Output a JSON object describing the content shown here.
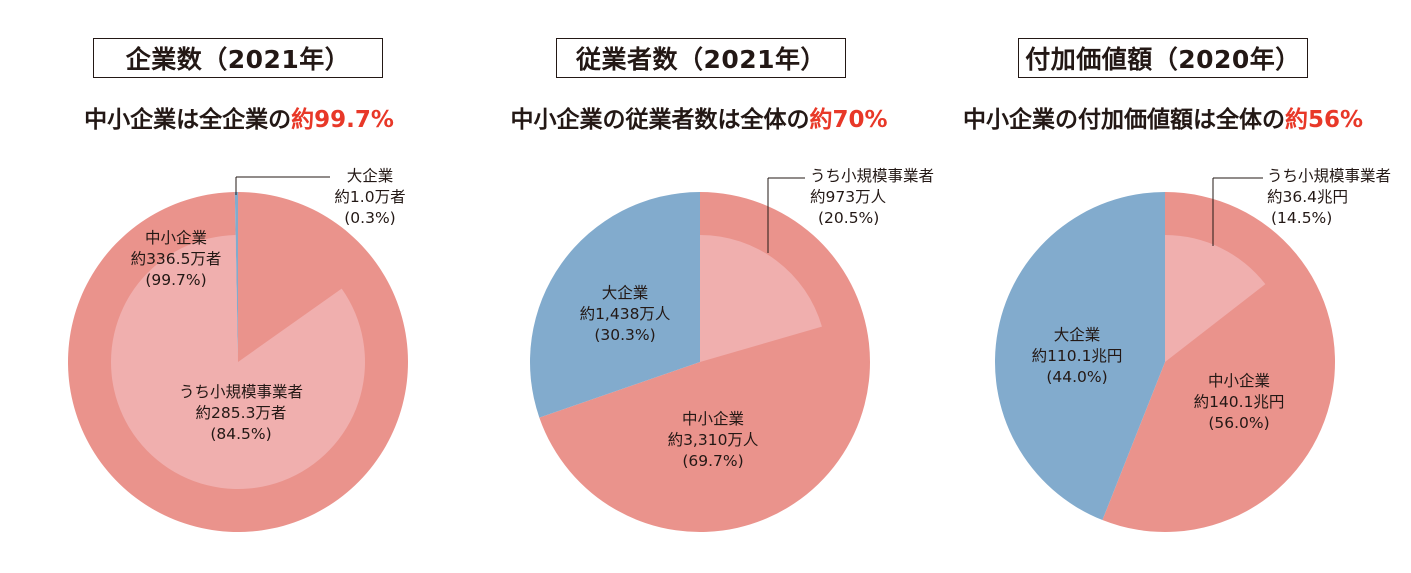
{
  "colors": {
    "small": "#ea938c",
    "micro": "#f0afae",
    "large": "#82abcd",
    "highlight": "#e83828",
    "text": "#231815"
  },
  "chart_data": [
    {
      "type": "pie",
      "title": "企業数（2021年）",
      "subtitle": {
        "text": "中小企業は全企業の",
        "highlight": "約99.7%"
      },
      "slices": [
        {
          "name": "大企業",
          "amount": "約1.0万者",
          "share": 0.3
        },
        {
          "name": "中小企業",
          "amount": "約336.5万者",
          "share": 99.7
        }
      ],
      "inner_slice": {
        "name": "うち小規模事業者",
        "amount": "約285.3万者",
        "share": 84.5
      }
    },
    {
      "type": "pie",
      "title": "従業者数（2021年）",
      "subtitle": {
        "text": "中小企業の従業者数は全体の",
        "highlight": "約70%"
      },
      "slices": [
        {
          "name": "中小企業",
          "amount": "約3,310万人",
          "share": 69.7
        },
        {
          "name": "大企業",
          "amount": "約1,438万人",
          "share": 30.3
        }
      ],
      "inner_slice": {
        "name": "うち小規模事業者",
        "amount": "約973万人",
        "share": 20.5
      }
    },
    {
      "type": "pie",
      "title": "付加価値額（2020年）",
      "subtitle": {
        "text": "中小企業の付加価値額は全体の",
        "highlight": "約56%"
      },
      "slices": [
        {
          "name": "中小企業",
          "amount": "約140.1兆円",
          "share": 56.0
        },
        {
          "name": "大企業",
          "amount": "約110.1兆円",
          "share": 44.0
        }
      ],
      "inner_slice": {
        "name": "うち小規模事業者",
        "amount": "約36.4兆円",
        "share": 14.5
      }
    }
  ]
}
